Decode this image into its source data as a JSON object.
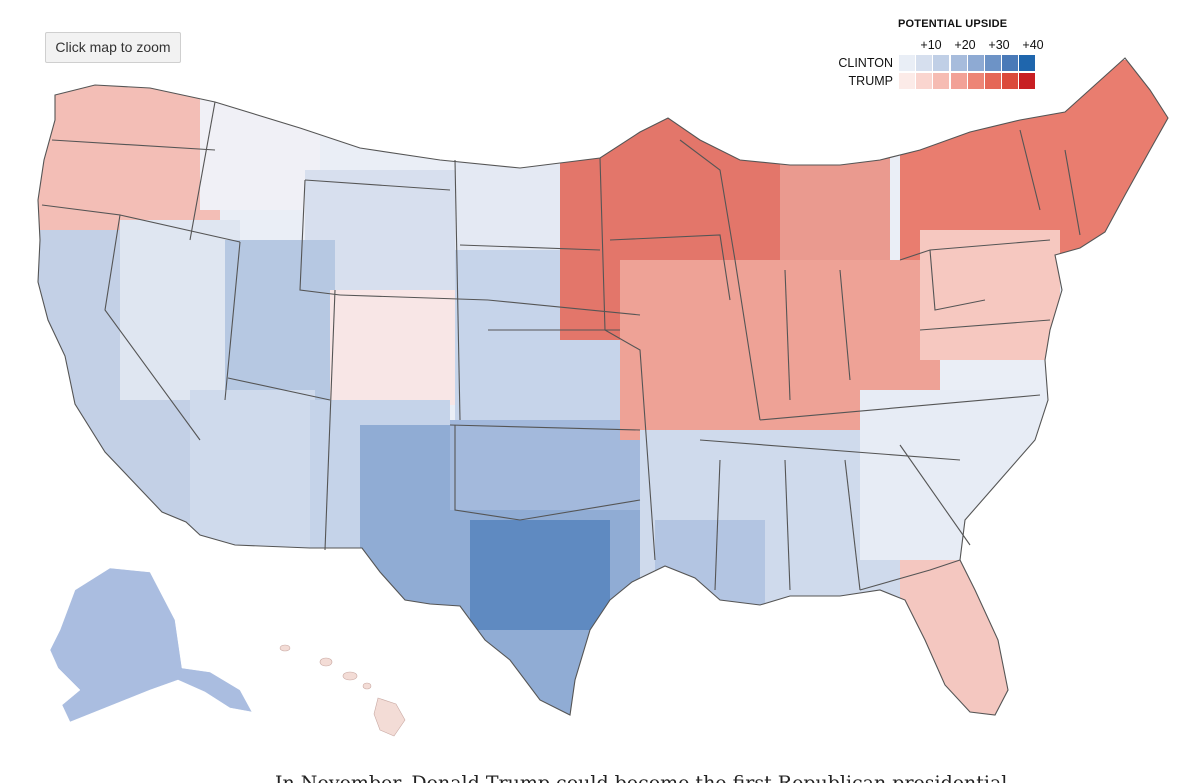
{
  "zoom_button": {
    "label": "Click map to zoom"
  },
  "legend": {
    "title": "POTENTIAL UPSIDE",
    "ticks": [
      "+10",
      "+20",
      "+30",
      "+40"
    ],
    "rows": [
      {
        "label": "CLINTON",
        "colors": [
          "#e9eef6",
          "#d6dfee",
          "#c0cfe6",
          "#a7bcdc",
          "#8eaad3",
          "#6d93c6",
          "#4a7ab8",
          "#1f66ad"
        ]
      },
      {
        "label": "TRUMP",
        "colors": [
          "#fcebe8",
          "#fad5cf",
          "#f6bcb3",
          "#f2a197",
          "#ed8576",
          "#e56757",
          "#db4a3c",
          "#c81f23"
        ]
      }
    ]
  },
  "article": {
    "first_line": "In November, Donald Trump could become the first Republican presidential"
  },
  "colors": {
    "state_border": "#555555",
    "clinton_strong": "#1f66ad",
    "trump_strong": "#c81f23"
  }
}
